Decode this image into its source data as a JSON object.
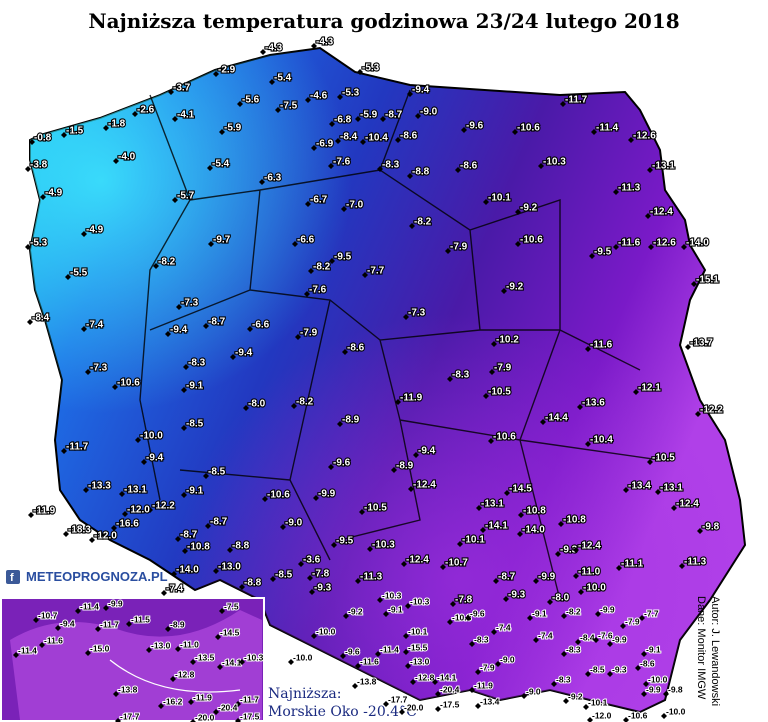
{
  "header": {
    "title": "Najniższa temperatura godzinowa 23/24 lutego 2018"
  },
  "logo": "METEOPROGNOZA.PL",
  "credits": {
    "author": "Autor: J. Lewandowski",
    "source": "Dane: Monitor IMGW"
  },
  "minimum": {
    "label": "Najniższa:",
    "value": "Morskie Oko -20.4°C"
  },
  "stations": [
    "-4.3",
    "-4.3",
    "-5.3",
    "-2.9",
    "-5.4",
    "-3.7",
    "-5.6",
    "-7.5",
    "-4.6",
    "-5.3",
    "-9.4",
    "-11.7",
    "-2.6",
    "-4.1",
    "-1.8",
    "-1.5",
    "-0.8",
    "-6.8",
    "-5.9",
    "-8.7",
    "-9.0",
    "-9.6",
    "-10.6",
    "-11.4",
    "-12.6",
    "-5.9",
    "-10.4",
    "-8.4",
    "-6.9",
    "-8.6",
    "-3.8",
    "-4.0",
    "-5.4",
    "-7.6",
    "-8.3",
    "-8.8",
    "-8.6",
    "-10.3",
    "-13.1",
    "-6.3",
    "-11.3",
    "-4.9",
    "-5.7",
    "-6.7",
    "-7.0",
    "-10.1",
    "-9.2",
    "-12.4",
    "-4.9",
    "-9.7",
    "-6.6",
    "-8.2",
    "-7.9",
    "-10.6",
    "-11.6",
    "-12.6",
    "-14.0",
    "-5.3",
    "-9.5",
    "-9.5",
    "-8.2",
    "-8.2",
    "-7.7",
    "-5.5",
    "-15.1",
    "-7.6",
    "-9.2",
    "-8.4",
    "-7.3",
    "-7.4",
    "-9.4",
    "-8.7",
    "-6.6",
    "-7.9",
    "-7.3",
    "-10.2",
    "-11.6",
    "-13.7",
    "-8.3",
    "-9.4",
    "-8.6",
    "-7.3",
    "-7.9",
    "-10.6",
    "-9.1",
    "-8.3",
    "-10.5",
    "-12.1",
    "-13.6",
    "-12.2",
    "-8.0",
    "-8.2",
    "-11.9",
    "-14.4",
    "-8.5",
    "-8.9",
    "-10.0",
    "-10.6",
    "-10.4",
    "-11.7",
    "-9.4",
    "-9.4",
    "-10.5",
    "-9.6",
    "-8.9",
    "-8.5",
    "-12.4",
    "-13.4",
    "-13.1",
    "-13.3",
    "-13.1",
    "-14.5",
    "-9.1",
    "-10.6",
    "-9.9",
    "-12.2",
    "-12.4",
    "-11.9",
    "-13.1",
    "-12.0",
    "-10.5",
    "-10.8",
    "-18.3",
    "-16.6",
    "-12.0",
    "-8.7",
    "-14.1",
    "-10.8",
    "-14.0",
    "-9.0",
    "-9.8",
    "-8.7",
    "-10.1",
    "-10.8",
    "-8.8",
    "-9.5",
    "-10.3",
    "-9.3",
    "-12.4",
    "-3.6",
    "-11.1",
    "-11.3",
    "-12.4",
    "-10.7",
    "-13.0",
    "-14.0",
    "-8.5",
    "-7.8",
    "-11.3",
    "-11.0",
    "-8.7",
    "-9.9",
    "-7.4",
    "-8.8",
    "-9.3",
    "-10.0",
    "-7.8",
    "-9.3",
    "-8.0"
  ],
  "mountain_stations": [
    "-9.2",
    "-10.3",
    "-10.3",
    "-9.1",
    "-10.1",
    "-10.0",
    "-10.0",
    "-9.6",
    "-11.6",
    "-13.8",
    "-11.4",
    "-15.5",
    "-13.0",
    "-12.8",
    "-14.1",
    "-20.4",
    "-20.0",
    "-17.7",
    "-17.5",
    "-13.4",
    "-11.9",
    "-9.0",
    "-8.3",
    "-9.2",
    "-10.1",
    "-12.0",
    "-10.6",
    "-10.0",
    "-9.8",
    "-9.9",
    "-10.0",
    "-8.6",
    "-9.1",
    "-7.7",
    "-9.9",
    "-7.9",
    "-8.2",
    "-8.4",
    "-7.6",
    "-9.9",
    "-8.3",
    "-8.5",
    "-9.3",
    "-9.1",
    "-7.4",
    "-7.4",
    "-8.3",
    "-9.0",
    "-7.9",
    "-10.3",
    "-9.6"
  ],
  "inset_stations": [
    "-10.7",
    "-11.4",
    "-9.9",
    "-11.5",
    "-8.9",
    "-7.5",
    "-9.4",
    "-11.7",
    "-14.5",
    "-11.6",
    "-15.0",
    "-13.0",
    "-11.0",
    "-13.5",
    "-14.1",
    "-10.3",
    "-11.4",
    "-12.8",
    "-13.8",
    "-16.2",
    "-11.9",
    "-11.7",
    "-20.4",
    "-17.7",
    "-20.0",
    "-17.5"
  ]
}
